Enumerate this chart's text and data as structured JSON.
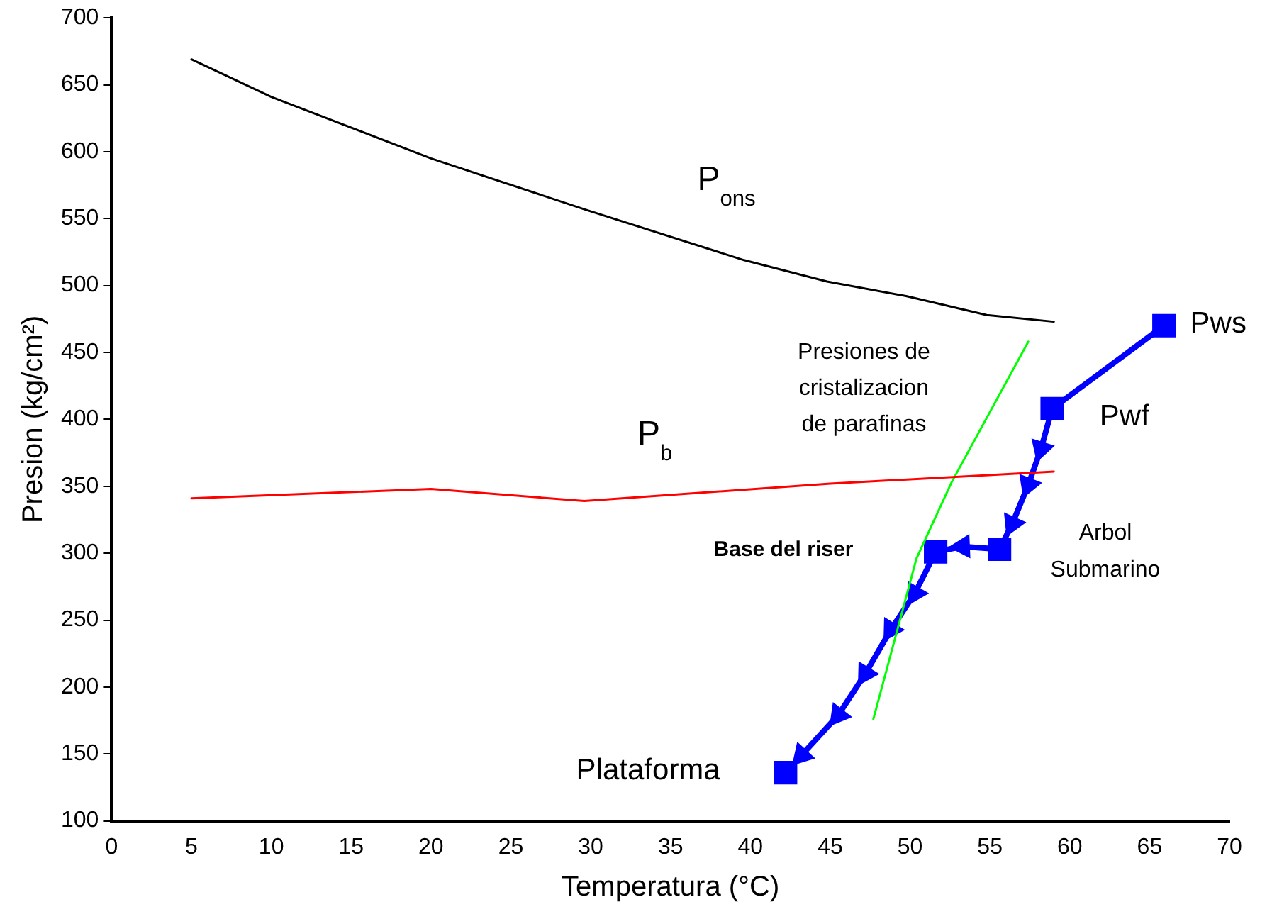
{
  "chart_data": {
    "type": "line",
    "xlabel": "Temperatura (°C)",
    "ylabel": "Presion (kg/cm²)",
    "xlim": [
      0,
      70
    ],
    "xticks": [
      0,
      5,
      10,
      15,
      20,
      25,
      30,
      35,
      40,
      45,
      50,
      55,
      60,
      65,
      70
    ],
    "ylim": [
      100,
      700
    ],
    "yticks": [
      100,
      150,
      200,
      250,
      300,
      350,
      400,
      450,
      500,
      550,
      600,
      650,
      700
    ],
    "grid": false,
    "legend": false,
    "series": [
      {
        "type": "line",
        "color": "#000000",
        "marker": "none",
        "x": [
          5,
          10,
          20,
          29.6,
          39.6,
          44.8,
          49.8,
          54.8,
          59
        ],
        "values": [
          669,
          641,
          595,
          557,
          519,
          503,
          492,
          478,
          473
        ]
      },
      {
        "type": "line",
        "color": "#ff0000",
        "marker": "none",
        "x": [
          5,
          20,
          29.6,
          45,
          59
        ],
        "values": [
          341,
          348,
          339,
          352,
          361
        ]
      },
      {
        "type": "line",
        "color": "#00ff00",
        "marker": "none",
        "x": [
          47.7,
          50.4,
          52.6,
          57.4
        ],
        "values": [
          176,
          296,
          353,
          458
        ]
      },
      {
        "type": "line",
        "color": "#0000ff",
        "marker": "none",
        "x": [
          65.9,
          58.9,
          58.2,
          57.4,
          56.4,
          55.6,
          53.3,
          51.6,
          50.3,
          48.8,
          47.2,
          45.5,
          43.2,
          42.2
        ],
        "values": [
          470,
          408,
          378,
          351,
          322,
          303,
          305,
          301,
          270,
          243,
          210,
          179,
          149,
          136
        ]
      },
      {
        "type": "scatter",
        "color": "#0000ff",
        "marker": "square",
        "x": [
          65.9,
          58.9,
          55.6,
          51.6,
          42.2
        ],
        "values": [
          470,
          408,
          303,
          301,
          136
        ]
      },
      {
        "type": "scatter",
        "color": "#0000ff",
        "marker": "triangle",
        "x": [
          58.2,
          57.4,
          56.4,
          53.3,
          50.3,
          48.8,
          47.2,
          45.5,
          43.2
        ],
        "values": [
          378,
          351,
          322,
          305,
          270,
          243,
          210,
          179,
          149
        ]
      }
    ],
    "annotations": [
      "P$_{ons}$",
      "P$_{b}$",
      "Presiones de\ncristalizacion\nde parafinas",
      "Pws",
      "Pwf",
      "Arbol\nSubmarino",
      "Base del riser",
      "Plataforma"
    ]
  }
}
